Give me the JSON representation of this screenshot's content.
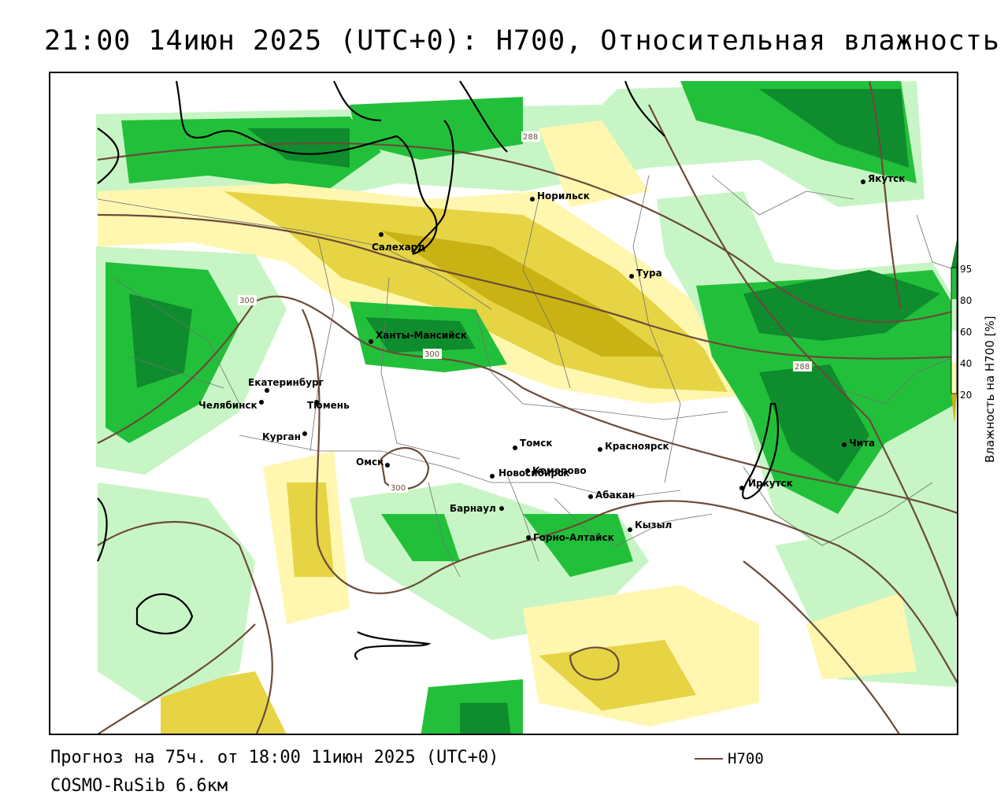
{
  "title": "21:00 14июн 2025 (UTC+0): H700, Относительная влажность",
  "footer": {
    "forecast": "Прогноз на 75ч. от 18:00 11июн 2025 (UTC+0)",
    "model": "COSMO-RuSib 6.6км",
    "legend_label": "H700"
  },
  "colorbar": {
    "title": "Влажность на H700 [%]",
    "ticks": [
      "95",
      "80",
      "60",
      "40",
      "20"
    ],
    "colors": {
      "dark_green": "#0f8c2d",
      "green": "#22c03a",
      "light_green": "#c8f5c5",
      "white": "#ffffff",
      "light_yellow": "#fff7b0",
      "yellow": "#e6d445",
      "dark_yellow": "#c9b214"
    }
  },
  "cities": [
    {
      "name": "Норильск"
    },
    {
      "name": "Якутск"
    },
    {
      "name": "Салехард"
    },
    {
      "name": "Тура"
    },
    {
      "name": "Ханты-Мансийск"
    },
    {
      "name": "Екатеринбург"
    },
    {
      "name": "Тюмень"
    },
    {
      "name": "Челябинск"
    },
    {
      "name": "Курган"
    },
    {
      "name": "Омск"
    },
    {
      "name": "Новосибирск"
    },
    {
      "name": "Томск"
    },
    {
      "name": "Кемерово"
    },
    {
      "name": "Красноярск"
    },
    {
      "name": "Абакан"
    },
    {
      "name": "Барнаул"
    },
    {
      "name": "Горно-Алтайск"
    },
    {
      "name": "Кызыл"
    },
    {
      "name": "Иркутск"
    },
    {
      "name": "Чита"
    }
  ],
  "contour_labels": [
    "288",
    "300",
    "300",
    "288",
    "300"
  ],
  "contour_color": "#6b4a3a",
  "coast_color": "#000000"
}
